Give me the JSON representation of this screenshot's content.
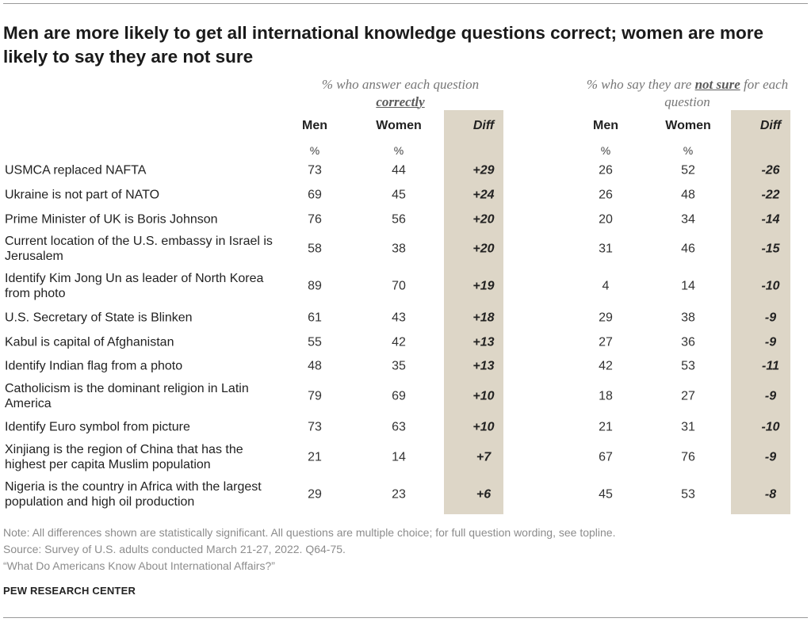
{
  "title": "Men are more likely to get all international knowledge questions correct; women are more likely to say they are not sure",
  "groups": {
    "correct": {
      "pre": "% who answer each question",
      "emph": "correctly",
      "post": ""
    },
    "notsure": {
      "pre": "% who say they are",
      "emph": "not sure",
      "post": "for each question"
    }
  },
  "columns": {
    "men": "Men",
    "women": "Women",
    "diff": "Diff",
    "pct": "%"
  },
  "chart_data": {
    "type": "table",
    "rows": [
      {
        "label": "USMCA replaced NAFTA",
        "c_men": 73,
        "c_women": 44,
        "c_diff": "+29",
        "n_men": 26,
        "n_women": 52,
        "n_diff": "-26"
      },
      {
        "label": "Ukraine is not part of NATO",
        "c_men": 69,
        "c_women": 45,
        "c_diff": "+24",
        "n_men": 26,
        "n_women": 48,
        "n_diff": "-22"
      },
      {
        "label": "Prime Minister of UK is Boris Johnson",
        "c_men": 76,
        "c_women": 56,
        "c_diff": "+20",
        "n_men": 20,
        "n_women": 34,
        "n_diff": "-14"
      },
      {
        "label": "Current location of the U.S. embassy in Israel is Jerusalem",
        "c_men": 58,
        "c_women": 38,
        "c_diff": "+20",
        "n_men": 31,
        "n_women": 46,
        "n_diff": "-15"
      },
      {
        "label": "Identify Kim Jong Un as leader of North Korea from photo",
        "c_men": 89,
        "c_women": 70,
        "c_diff": "+19",
        "n_men": 4,
        "n_women": 14,
        "n_diff": "-10"
      },
      {
        "label": "U.S. Secretary of State is Blinken",
        "c_men": 61,
        "c_women": 43,
        "c_diff": "+18",
        "n_men": 29,
        "n_women": 38,
        "n_diff": "-9"
      },
      {
        "label": "Kabul is capital of Afghanistan",
        "c_men": 55,
        "c_women": 42,
        "c_diff": "+13",
        "n_men": 27,
        "n_women": 36,
        "n_diff": "-9"
      },
      {
        "label": "Identify Indian flag from a photo",
        "c_men": 48,
        "c_women": 35,
        "c_diff": "+13",
        "n_men": 42,
        "n_women": 53,
        "n_diff": "-11"
      },
      {
        "label": "Catholicism is the dominant religion in Latin America",
        "c_men": 79,
        "c_women": 69,
        "c_diff": "+10",
        "n_men": 18,
        "n_women": 27,
        "n_diff": "-9"
      },
      {
        "label": "Identify Euro symbol from picture",
        "c_men": 73,
        "c_women": 63,
        "c_diff": "+10",
        "n_men": 21,
        "n_women": 31,
        "n_diff": "-10"
      },
      {
        "label": "Xinjiang is the region of China that has the highest per capita Muslim population",
        "c_men": 21,
        "c_women": 14,
        "c_diff": "+7",
        "n_men": 67,
        "n_women": 76,
        "n_diff": "-9"
      },
      {
        "label": "Nigeria is the country in Africa with the largest population and high oil production",
        "c_men": 29,
        "c_women": 23,
        "c_diff": "+6",
        "n_men": 45,
        "n_women": 53,
        "n_diff": "-8"
      }
    ]
  },
  "notes": {
    "note": "Note: All differences shown are statistically significant. All questions are multiple choice; for full question wording, see topline.",
    "source": "Source: Survey of U.S. adults conducted March 21-27, 2022. Q64-75.",
    "report": "“What Do Americans Know About International Affairs?”"
  },
  "org": "PEW RESEARCH CENTER",
  "colors": {
    "diff_band": "#ddd6c7",
    "rule": "#9a9a9a",
    "note_text": "#8c8c8c"
  }
}
